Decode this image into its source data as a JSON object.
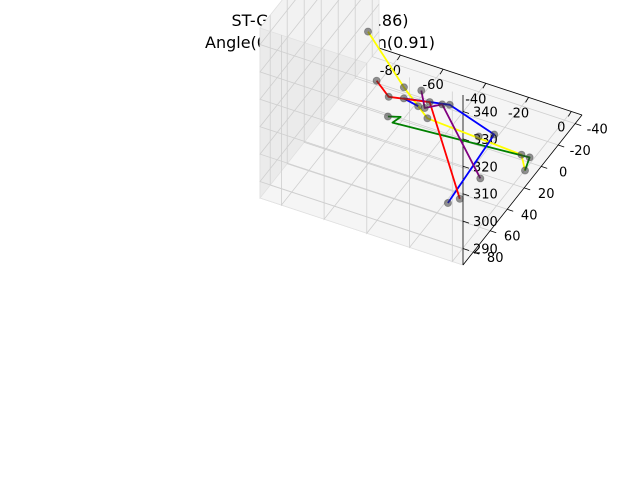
{
  "chart_data": {
    "type": "scatter3d",
    "title": "ST-GCN: MPJPE(12.86)",
    "subtitle": "Angle(0.62) - Direction(0.91)",
    "xlabel": "",
    "ylabel": "",
    "zlabel": "",
    "x_ticks": [
      "-80",
      "-60",
      "-40",
      "-20",
      "0"
    ],
    "y_ticks": [
      "-40",
      "-20",
      "0",
      "20",
      "40",
      "60",
      "80"
    ],
    "z_ticks": [
      "290",
      "300",
      "310",
      "320",
      "330",
      "340"
    ],
    "xlim": [
      -90,
      5
    ],
    "ylim": [
      -48,
      92
    ],
    "zlim": [
      284,
      346
    ],
    "grid": true,
    "joints": [
      {
        "name": "j-left-foot",
        "xyz": [
          -86,
          -25,
          300
        ]
      },
      {
        "name": "j-left-knee",
        "xyz": [
          -70,
          -27,
          283
        ]
      },
      {
        "name": "j-left-hip",
        "xyz": [
          -57,
          -22,
          277
        ]
      },
      {
        "name": "j-pelvis",
        "xyz": [
          -31,
          -17,
          279
        ]
      },
      {
        "name": "j-right-hip",
        "xyz": [
          -9,
          -12,
          280
        ]
      },
      {
        "name": "j-right-knee",
        "xyz": [
          -6,
          -14,
          279
        ]
      },
      {
        "name": "j-right-foot",
        "xyz": [
          1,
          9,
          285
        ]
      },
      {
        "name": "j-spine",
        "xyz": [
          -39,
          -3,
          294
        ]
      },
      {
        "name": "j-neck",
        "xyz": [
          -43,
          24,
          303
        ]
      },
      {
        "name": "j-head",
        "xyz": [
          -45,
          36,
          310
        ]
      },
      {
        "name": "j-right-shoulder",
        "xyz": [
          -17,
          0,
          290
        ]
      },
      {
        "name": "j-right-elbow",
        "xyz": [
          -6,
          44,
          294
        ]
      },
      {
        "name": "j-right-wrist",
        "xyz": [
          -10,
          58,
          291
        ]
      },
      {
        "name": "j-left-shoulder",
        "xyz": [
          -52,
          37,
          302
        ]
      },
      {
        "name": "j-left-elbow",
        "xyz": [
          -29,
          31,
          310
        ]
      },
      {
        "name": "j-left-wrist",
        "xyz": [
          -36,
          38,
          316
        ]
      },
      {
        "name": "j-right-hand",
        "xyz": [
          -32,
          44,
          313
        ]
      },
      {
        "name": "j-left-hand",
        "xyz": [
          -14,
          62,
          290
        ]
      },
      {
        "name": "j-hip-left-end",
        "xyz": [
          -74,
          -5,
          293
        ]
      },
      {
        "name": "j-hip-mid",
        "xyz": [
          -64,
          6,
          294
        ]
      },
      {
        "name": "j-chest",
        "xyz": [
          -44,
          8,
          298
        ]
      }
    ],
    "series": [
      {
        "color": "#ffff00",
        "path": [
          [
            -86,
            -25,
            300
          ],
          [
            -70,
            -27,
            283
          ],
          [
            -57,
            -22,
            277
          ],
          [
            -9,
            -12,
            280
          ],
          [
            1,
            9,
            285
          ]
        ]
      },
      {
        "color": "#008000",
        "path": [
          [
            -52,
            37,
            302
          ],
          [
            -52,
            22,
            296
          ],
          [
            -59,
            14,
            289
          ],
          [
            -6,
            -14,
            279
          ],
          [
            1,
            9,
            285
          ]
        ]
      },
      {
        "color": "#0000ff",
        "path": [
          [
            -43,
            24,
            303
          ],
          [
            -45,
            36,
            310
          ],
          [
            -39,
            -3,
            294
          ],
          [
            -17,
            0,
            290
          ],
          [
            -14,
            62,
            290
          ]
        ]
      },
      {
        "color": "#ff0000",
        "path": [
          [
            -74,
            -5,
            293
          ],
          [
            -64,
            6,
            294
          ],
          [
            -44,
            8,
            298
          ],
          [
            -10,
            58,
            291
          ]
        ]
      },
      {
        "color": "#800080",
        "path": [
          [
            -36,
            38,
            316
          ],
          [
            -32,
            44,
            313
          ],
          [
            -29,
            31,
            310
          ],
          [
            -6,
            44,
            294
          ]
        ]
      }
    ]
  }
}
